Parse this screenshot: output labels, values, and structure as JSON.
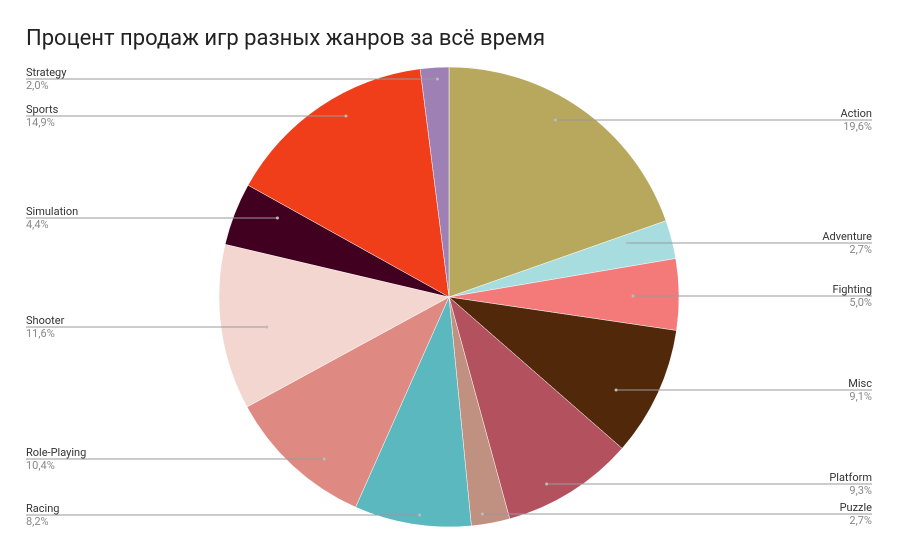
{
  "chart_data": {
    "type": "pie",
    "title": "Процент продаж игр разных жанров за всё время",
    "categories": [
      "Action",
      "Adventure",
      "Fighting",
      "Misc",
      "Platform",
      "Puzzle",
      "Racing",
      "Role-Playing",
      "Shooter",
      "Simulation",
      "Sports",
      "Strategy"
    ],
    "values": [
      19.6,
      2.7,
      5.0,
      9.1,
      9.3,
      2.7,
      8.2,
      10.4,
      11.6,
      4.4,
      14.9,
      2.0
    ],
    "value_labels": [
      "19,6%",
      "2,7%",
      "5,0%",
      "9,1%",
      "9,3%",
      "2,7%",
      "8,2%",
      "10,4%",
      "11,6%",
      "4,4%",
      "14,9%",
      "2,0%"
    ],
    "colors": [
      "#b8a85e",
      "#a8dde0",
      "#f47a7a",
      "#52280b",
      "#b3525e",
      "#c09080",
      "#5bb8be",
      "#de8a82",
      "#f4d6d0",
      "#420020",
      "#f03e1a",
      "#9e80b4"
    ]
  }
}
